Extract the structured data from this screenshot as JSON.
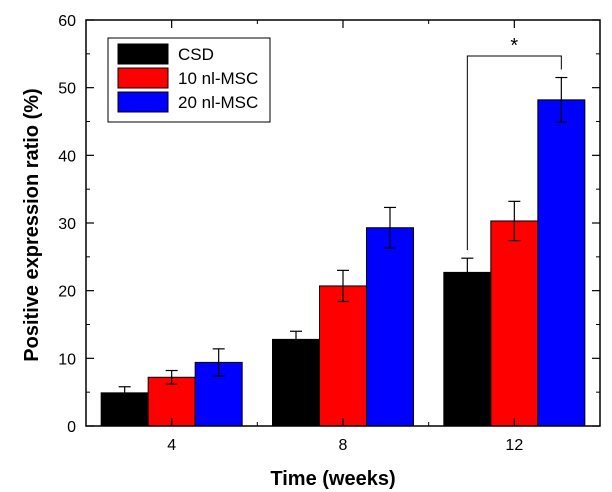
{
  "chart_data": {
    "type": "bar",
    "categories": [
      "4",
      "8",
      "12"
    ],
    "series": [
      {
        "name": "CSD",
        "color": "#000000",
        "values": [
          4.9,
          12.8,
          22.7
        ],
        "errors": [
          0.9,
          1.2,
          2.1
        ]
      },
      {
        "name": "10 nl-MSC",
        "color": "#ff0000",
        "values": [
          7.2,
          20.7,
          30.3
        ],
        "errors": [
          1.0,
          2.3,
          2.9
        ]
      },
      {
        "name": "20 nl-MSC",
        "color": "#0000ff",
        "values": [
          9.4,
          29.3,
          48.2
        ],
        "errors": [
          2.0,
          3.0,
          3.3
        ]
      }
    ],
    "xlabel": "Time (weeks)",
    "ylabel": "Positive expression ratio (%)",
    "ylim": [
      0,
      60
    ],
    "yticks": [
      0,
      10,
      20,
      30,
      40,
      50,
      60
    ],
    "grid": false,
    "legend_position": "top-left",
    "annotations": [
      {
        "text": "*",
        "category": "12",
        "from_series": "CSD",
        "to_series": "20 nl-MSC"
      }
    ]
  }
}
